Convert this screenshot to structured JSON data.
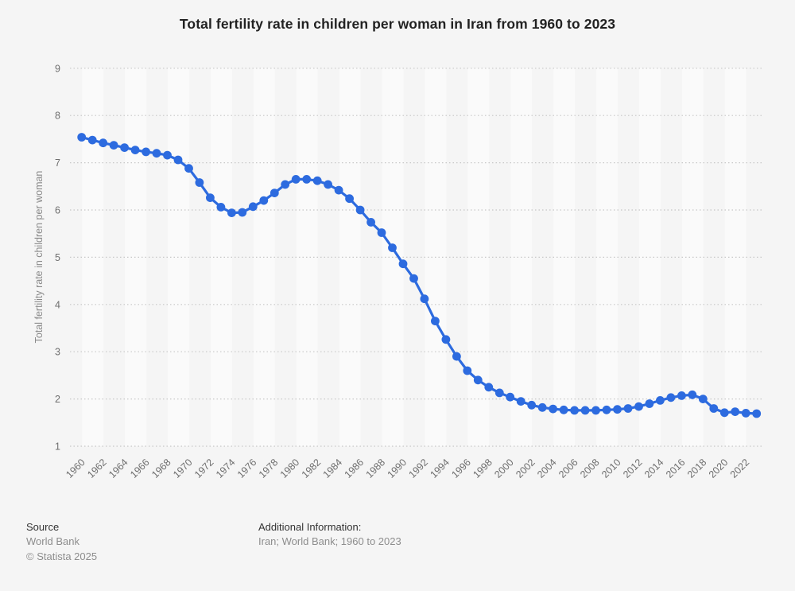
{
  "title": "Total fertility rate in children per woman in Iran from 1960 to 2023",
  "chart_data": {
    "type": "line",
    "title": "Total fertility rate in children per woman in Iran from 1960 to 2023",
    "xlabel": "",
    "ylabel": "Total fertility rate in children per woman",
    "x": [
      1960,
      1961,
      1962,
      1963,
      1964,
      1965,
      1966,
      1967,
      1968,
      1969,
      1970,
      1971,
      1972,
      1973,
      1974,
      1975,
      1976,
      1977,
      1978,
      1979,
      1980,
      1981,
      1982,
      1983,
      1984,
      1985,
      1986,
      1987,
      1988,
      1989,
      1990,
      1991,
      1992,
      1993,
      1994,
      1995,
      1996,
      1997,
      1998,
      1999,
      2000,
      2001,
      2002,
      2003,
      2004,
      2005,
      2006,
      2007,
      2008,
      2009,
      2010,
      2011,
      2012,
      2013,
      2014,
      2015,
      2016,
      2017,
      2018,
      2019,
      2020,
      2021,
      2022,
      2023
    ],
    "values": [
      7.54,
      7.48,
      7.42,
      7.37,
      7.32,
      7.27,
      7.23,
      7.2,
      7.16,
      7.06,
      6.88,
      6.58,
      6.26,
      6.06,
      5.94,
      5.95,
      6.07,
      6.2,
      6.36,
      6.54,
      6.65,
      6.65,
      6.62,
      6.54,
      6.42,
      6.24,
      6.0,
      5.74,
      5.52,
      5.2,
      4.86,
      4.55,
      4.12,
      3.65,
      3.26,
      2.9,
      2.6,
      2.4,
      2.25,
      2.13,
      2.04,
      1.95,
      1.87,
      1.82,
      1.79,
      1.77,
      1.76,
      1.76,
      1.76,
      1.77,
      1.78,
      1.8,
      1.84,
      1.9,
      1.97,
      2.03,
      2.07,
      2.09,
      2.0,
      1.8,
      1.71,
      1.73,
      1.7,
      1.69
    ],
    "ylim": [
      1,
      9
    ],
    "y_ticks": [
      1,
      2,
      3,
      4,
      5,
      6,
      7,
      8,
      9
    ],
    "x_tick_step": 2,
    "legend": "none",
    "grid": "horizontal-dotted",
    "line_color": "#2d6bdf",
    "marker": "circle"
  },
  "style": {
    "background": "#f5f5f5",
    "band_color": "#fafafa",
    "gridline_color": "#c7c7c7",
    "tick_label_color": "#6e6e6e",
    "axis_title_color": "#8a8a8a"
  },
  "footer": {
    "source_label": "Source",
    "source_value": "World Bank",
    "copyright": "© Statista 2025",
    "additional_info_label": "Additional Information:",
    "additional_info_value": "Iran; World Bank; 1960 to 2023"
  }
}
